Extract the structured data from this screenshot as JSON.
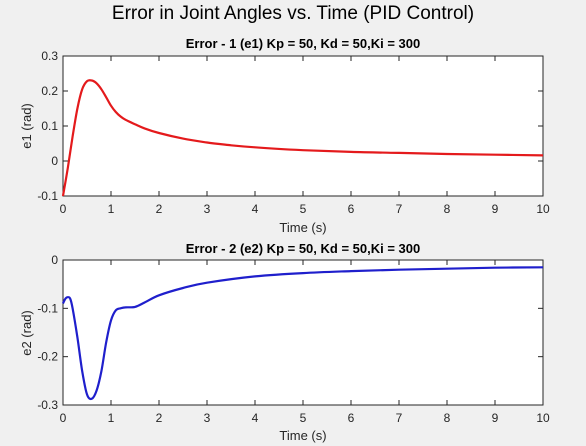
{
  "figure_title": "Error in Joint Angles vs. Time (PID Control)",
  "chart_data": [
    {
      "type": "line",
      "title": "Error - 1 (e1) Kp = 50, Kd = 50,Ki = 300",
      "xlabel": "Time (s)",
      "ylabel": "e1 (rad)",
      "xlim": [
        0,
        10
      ],
      "ylim": [
        -0.1,
        0.3
      ],
      "xticks": [
        0,
        1,
        2,
        3,
        4,
        5,
        6,
        7,
        8,
        9,
        10
      ],
      "yticks": [
        -0.1,
        0,
        0.1,
        0.2,
        0.3
      ],
      "ytick_labels": [
        "-0.1",
        "0",
        "0.1",
        "0.2",
        "0.3"
      ],
      "grid": false,
      "series": [
        {
          "color": "#e41a1c",
          "x": [
            0,
            0.1,
            0.2,
            0.3,
            0.4,
            0.5,
            0.6,
            0.7,
            0.8,
            0.9,
            1.0,
            1.1,
            1.2,
            1.3,
            1.5,
            1.7,
            2.0,
            2.5,
            3.0,
            3.5,
            4.0,
            5.0,
            6.0,
            7.0,
            8.0,
            9.0,
            10.0
          ],
          "y": [
            -0.1,
            -0.02,
            0.07,
            0.15,
            0.205,
            0.228,
            0.23,
            0.222,
            0.205,
            0.182,
            0.158,
            0.14,
            0.127,
            0.118,
            0.105,
            0.093,
            0.08,
            0.064,
            0.053,
            0.045,
            0.039,
            0.031,
            0.026,
            0.023,
            0.02,
            0.018,
            0.016
          ]
        }
      ]
    },
    {
      "type": "line",
      "title": "Error - 2 (e2) Kp = 50, Kd = 50,Ki = 300",
      "xlabel": "Time (s)",
      "ylabel": "e2 (rad)",
      "xlim": [
        0,
        10
      ],
      "ylim": [
        -0.3,
        0
      ],
      "xticks": [
        0,
        1,
        2,
        3,
        4,
        5,
        6,
        7,
        8,
        9,
        10
      ],
      "yticks": [
        -0.3,
        -0.2,
        -0.1,
        0
      ],
      "ytick_labels": [
        "-0.3",
        "-0.2",
        "-0.1",
        "0"
      ],
      "grid": false,
      "series": [
        {
          "color": "#1f1fcc",
          "x": [
            0,
            0.05,
            0.1,
            0.15,
            0.2,
            0.3,
            0.4,
            0.5,
            0.6,
            0.7,
            0.8,
            0.9,
            1.0,
            1.1,
            1.2,
            1.3,
            1.5,
            1.7,
            2.0,
            2.5,
            3.0,
            4.0,
            5.0,
            6.0,
            7.0,
            8.0,
            9.0,
            10.0
          ],
          "y": [
            -0.09,
            -0.08,
            -0.077,
            -0.08,
            -0.1,
            -0.16,
            -0.23,
            -0.278,
            -0.287,
            -0.27,
            -0.23,
            -0.17,
            -0.125,
            -0.104,
            -0.1,
            -0.098,
            -0.097,
            -0.088,
            -0.073,
            -0.058,
            -0.047,
            -0.034,
            -0.027,
            -0.023,
            -0.02,
            -0.018,
            -0.016,
            -0.015
          ]
        }
      ]
    }
  ]
}
